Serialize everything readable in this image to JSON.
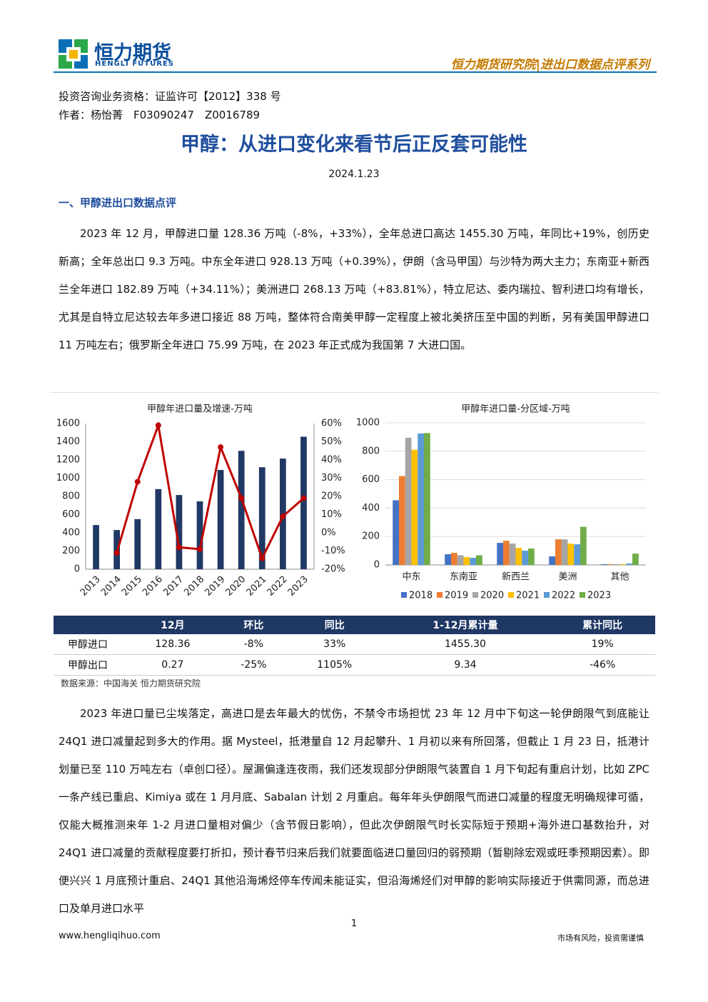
{
  "header": {
    "logo_cn": "恒力期货",
    "logo_en": "HENGLI FUTURES",
    "series_name": "恒力期货研究院|进出口数据点评系列"
  },
  "meta": {
    "license": "投资咨询业务资格：证监许可【2012】338 号",
    "author": "作者：杨怡菁　F03090247　Z0016789"
  },
  "title": "甲醇：从进口变化来看节后正反套可能性",
  "date": "2024.1.23",
  "section": "一、甲醇进出口数据点评",
  "paragraphs": [
    "2023 年 12 月，甲醇进口量 128.36 万吨（-8%，+33%），全年总进口高达 1455.30 万吨，年同比+19%，创历史新高；全年总出口 9.3 万吨。中东全年进口 928.13 万吨（+0.39%），伊朗（含马甲国）与沙特为两大主力；东南亚+新西兰全年进口 182.89 万吨（+34.11%）；美洲进口 268.13 万吨（+83.81%），特立尼达、委内瑞拉、智利进口均有增长，尤其是自特立尼达较去年多进口接近 88 万吨，整体符合南美甲醇一定程度上被北美挤压至中国的判断，另有美国甲醇进口 11 万吨左右；俄罗斯全年进口 75.99 万吨，在 2023 年正式成为我国第 7 大进口国。",
    "2023 年进口量已尘埃落定，高进口是去年最大的忧伤，不禁令市场担忧 23 年 12 月中下旬这一轮伊朗限气到底能让 24Q1 进口减量起到多大的作用。据 Mysteel，抵港量自 12 月起攀升、1 月初以来有所回落，但截止 1 月 23 日，抵港计划量已至 110 万吨左右（卓创口径）。屋漏偏逢连夜雨，我们还发现部分伊朗限气装置自 1 月下旬起有重启计划，比如 ZPC 一条产线已重启、Kimiya 或在 1 月月底、Sabalan 计划 2 月重启。每年年头伊朗限气而进口减量的程度无明确规律可循，仅能大概推测来年 1-2 月进口量相对偏少（含节假日影响），但此次伊朗限气时长实际短于预期+海外进口基数抬升，对 24Q1 进口减量的贡献程度要打折扣，预计春节归来后我们就要面临进口量回归的弱预期（暂剔除宏观或旺季预期因素）。即便兴兴 1 月底预计重启、24Q1 其他沿海烯烃停车传闻未能证实，但沿海烯烃们对甲醇的影响实际接近于供需同源，而总进口及单月进口水平"
  ],
  "chart_data": [
    {
      "type": "bar",
      "title": "甲醇年进口量及增速-万吨",
      "categories": [
        "2013",
        "2014",
        "2015",
        "2016",
        "2017",
        "2018",
        "2019",
        "2020",
        "2021",
        "2022",
        "2023"
      ],
      "series": [
        {
          "color": "#203864",
          "values": [
            485,
            430,
            550,
            880,
            815,
            745,
            1090,
            1300,
            1120,
            1215,
            1455.3
          ]
        },
        {
          "type": "line",
          "axis": "y2",
          "color": "#c00000",
          "values": [
            null,
            -11,
            28,
            59,
            -8,
            -9,
            47,
            19,
            -14,
            9,
            19
          ]
        }
      ],
      "ylim": [
        0,
        1600
      ],
      "yticks": [
        0,
        200,
        400,
        600,
        800,
        1000,
        1200,
        1400,
        1600
      ],
      "y2lim": [
        -20,
        60
      ],
      "y2ticks": [
        {
          "value": -20,
          "label": "-20%"
        },
        {
          "value": -10,
          "label": "-10%"
        },
        {
          "value": 0,
          "label": "0%"
        },
        {
          "value": 10,
          "label": "10%"
        },
        {
          "value": 20,
          "label": "20%"
        },
        {
          "value": 30,
          "label": "30%"
        },
        {
          "value": 40,
          "label": "40%"
        },
        {
          "value": 50,
          "label": "50%"
        },
        {
          "value": 60,
          "label": "60%"
        }
      ],
      "grid": false
    },
    {
      "type": "grouped-bar",
      "title": "甲醇年进口量-分区域-万吨",
      "categories": [
        "中东",
        "东南亚",
        "新西兰",
        "美洲",
        "其他"
      ],
      "series": [
        {
          "name": "2018",
          "color": "#4472c4",
          "values": [
            455,
            75,
            155,
            60,
            5
          ]
        },
        {
          "name": "2019",
          "color": "#ed7d31",
          "values": [
            625,
            85,
            170,
            180,
            5
          ]
        },
        {
          "name": "2020",
          "color": "#a5a5a5",
          "values": [
            895,
            68,
            150,
            180,
            5
          ]
        },
        {
          "name": "2021",
          "color": "#ffc000",
          "values": [
            810,
            55,
            120,
            150,
            5
          ]
        },
        {
          "name": "2022",
          "color": "#5b9bd5",
          "values": [
            925,
            50,
            100,
            145,
            10
          ]
        },
        {
          "name": "2023",
          "color": "#70ad47",
          "values": [
            928,
            68,
            115,
            268,
            80
          ]
        }
      ],
      "ylim": [
        0,
        1000
      ],
      "yticks": [
        0,
        200,
        400,
        600,
        800,
        1000
      ],
      "grid": true,
      "legend": "bottom"
    }
  ],
  "table": {
    "header": [
      "12月",
      "环比",
      "同比",
      "1-12月累计量",
      "累计同比"
    ],
    "rows": [
      [
        "甲醇进口",
        "128.36",
        "-8%",
        "33%",
        "1455.30",
        "19%"
      ],
      [
        "甲醇出口",
        "0.27",
        "-25%",
        "1105%",
        "9.34",
        "-46%"
      ]
    ]
  },
  "source": "数据来源：中国海关 恒力期货研究院",
  "footer": {
    "page": "1",
    "url": "www.hengliqihuo.com",
    "note": "市场有风险，投资需谨慎"
  }
}
